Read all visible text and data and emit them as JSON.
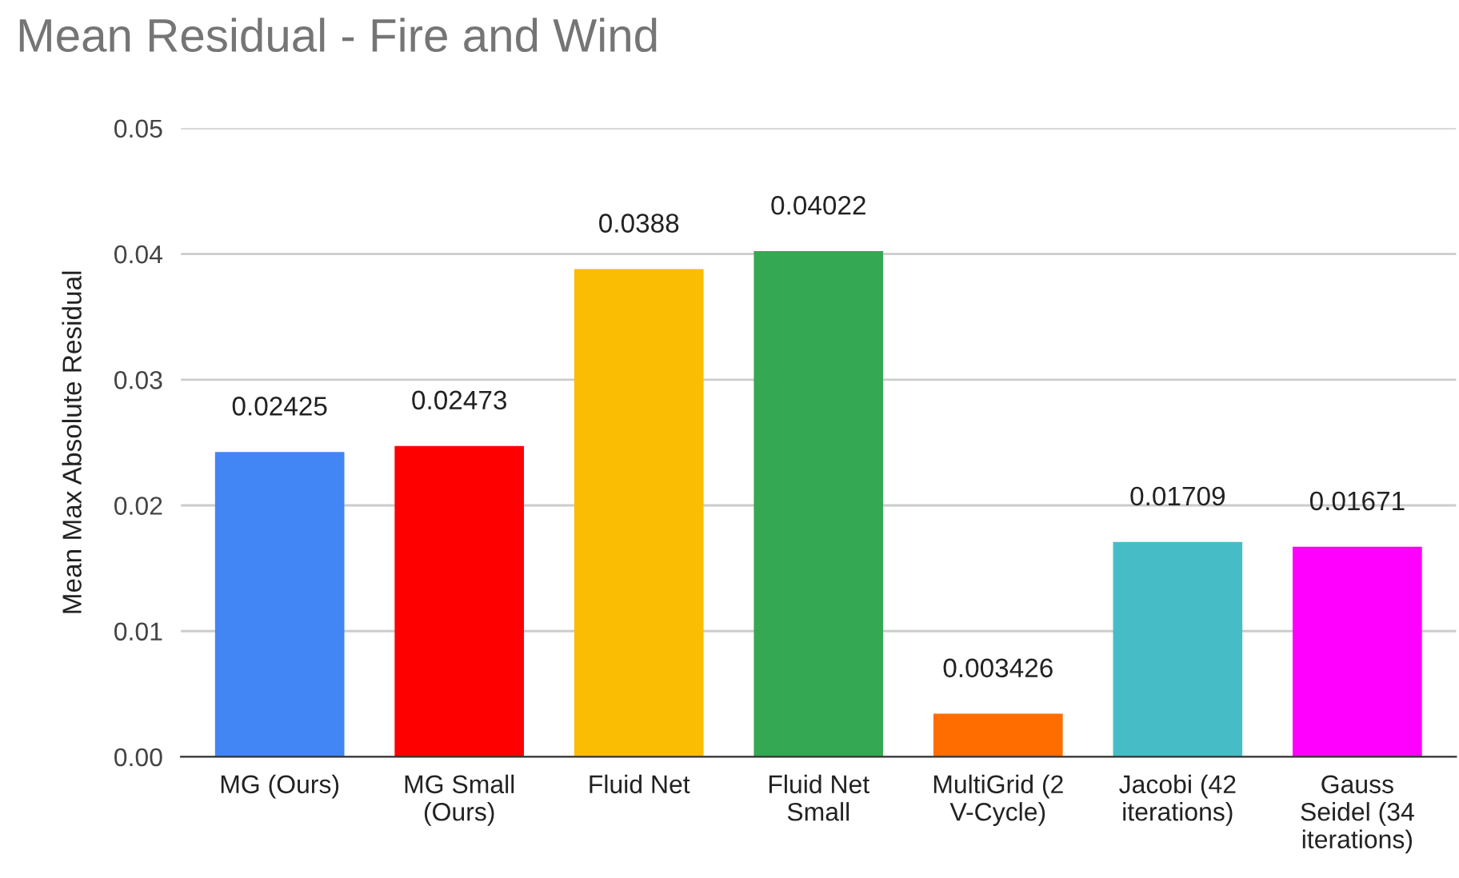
{
  "chart_data": {
    "type": "bar",
    "title": "Mean Residual - Fire and Wind",
    "ylabel": "Mean Max Absolute Residual",
    "categories": [
      "MG (Ours)",
      "MG Small\n(Ours)",
      "Fluid Net",
      "Fluid Net\nSmall",
      "MultiGrid (2\nV-Cycle)",
      "Jacobi (42\niterations)",
      "Gauss\nSeidel (34\niterations)"
    ],
    "values": [
      0.02425,
      0.02473,
      0.0388,
      0.04022,
      0.003426,
      0.01709,
      0.01671
    ],
    "colors": [
      "#4285f4",
      "#ff0000",
      "#fbbc04",
      "#34a853",
      "#ff6d01",
      "#46bdc6",
      "#ff00ff"
    ],
    "ylim": [
      0,
      0.05
    ],
    "yticks": [
      {
        "value": 0,
        "label": "0.00"
      },
      0.01,
      0.02,
      0.03,
      0.04,
      0.05
    ],
    "grid": "y",
    "data_labels": true,
    "legend": false
  }
}
